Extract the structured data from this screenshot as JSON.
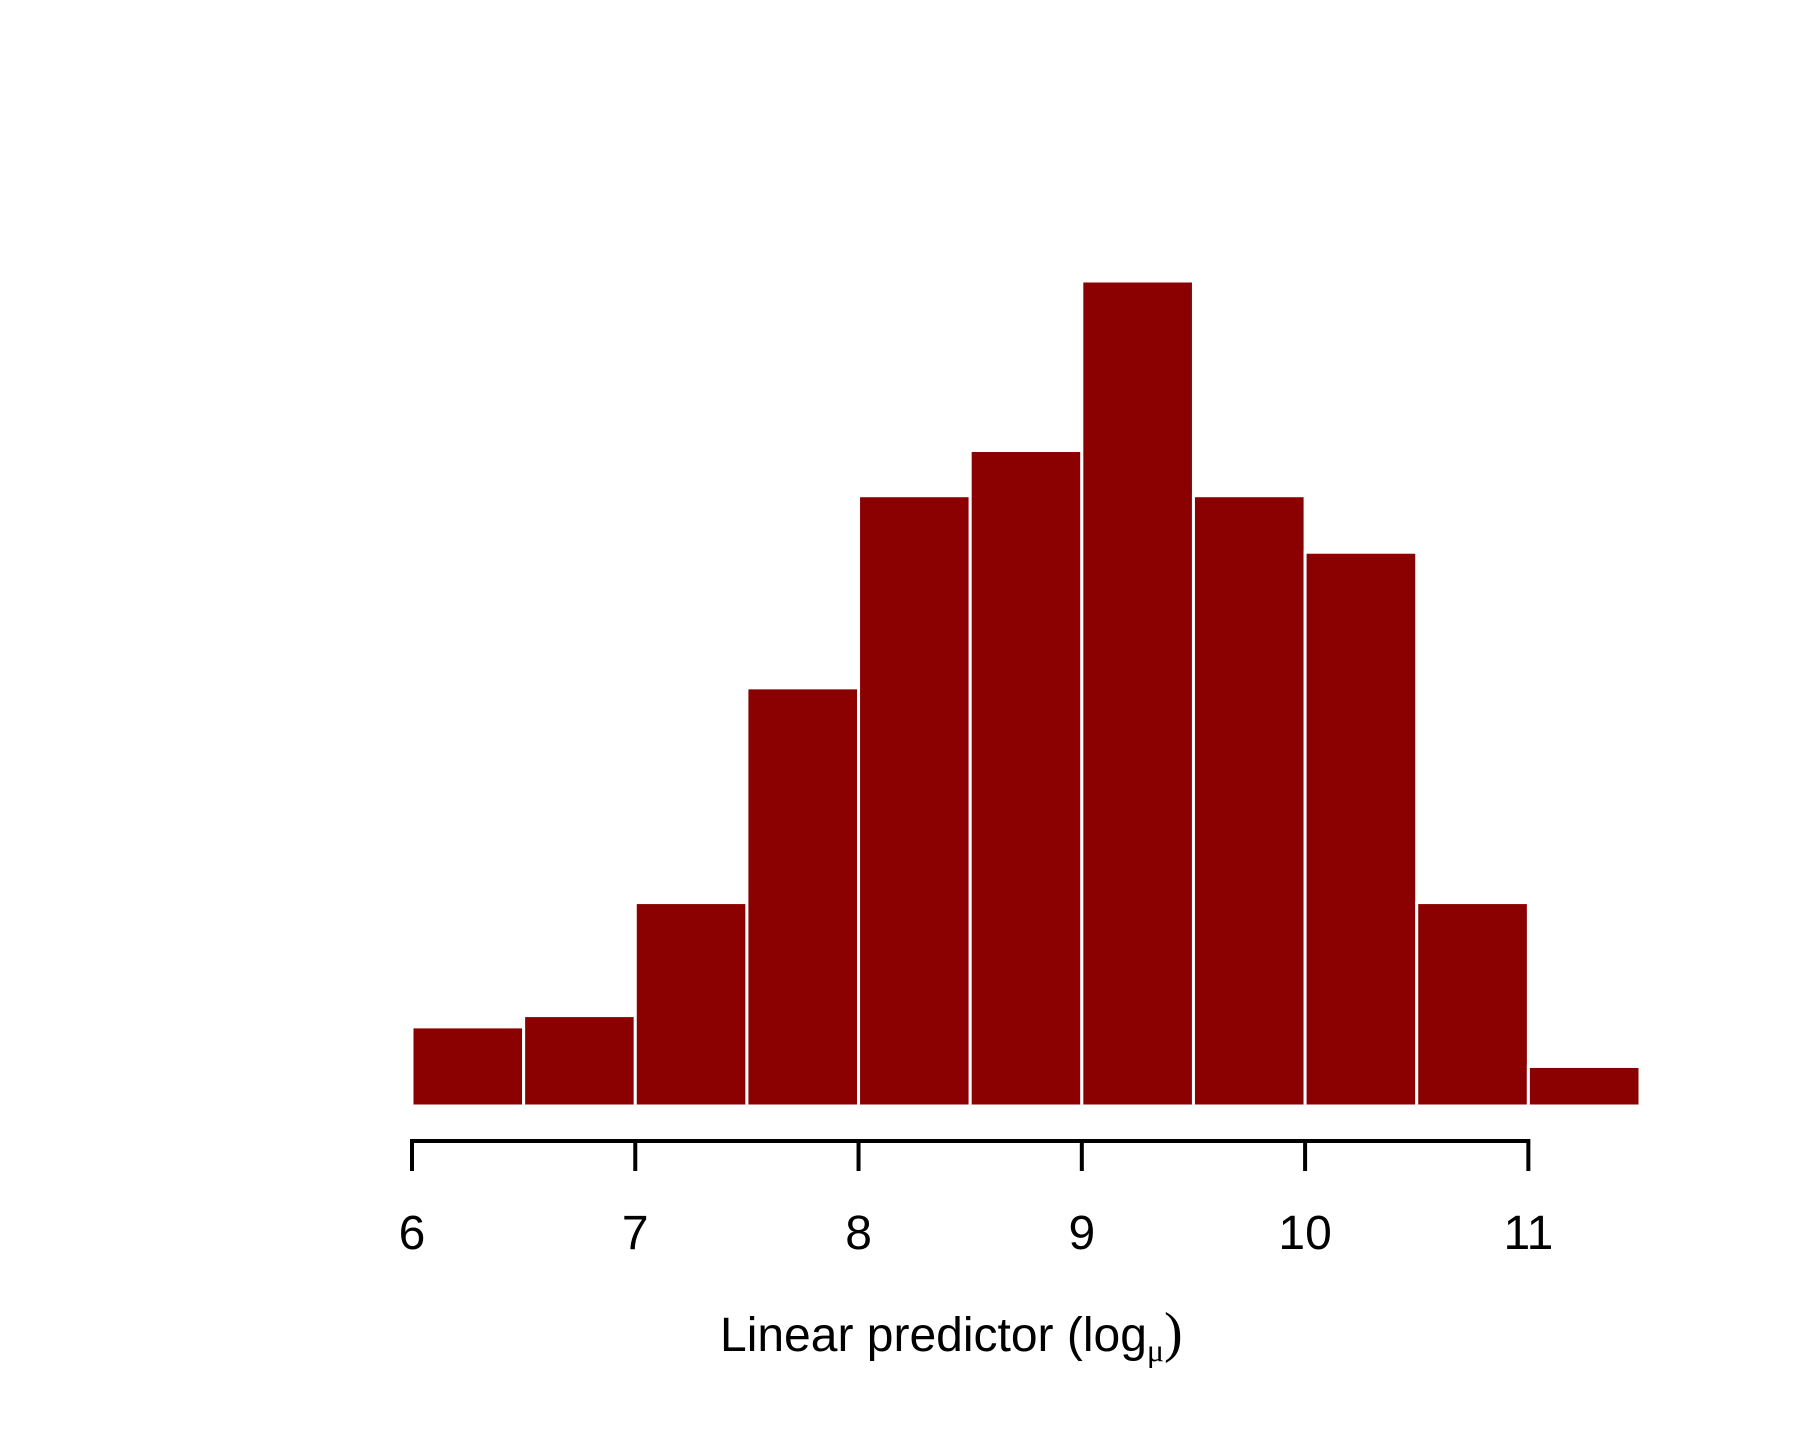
{
  "chart_data": {
    "type": "bar",
    "title": "",
    "xlabel": "Linear predictor (log",
    "xlabel_subscript": "μ",
    "xlabel_close": ")",
    "ylabel": "",
    "bin_edges": [
      6,
      6.5,
      7,
      7.5,
      8,
      8.5,
      9,
      9.5,
      10,
      10.5,
      11,
      11.5
    ],
    "values": [
      7,
      8,
      18,
      37,
      54,
      58,
      73,
      54,
      49,
      18,
      3.5
    ],
    "xlim": [
      6,
      11.5
    ],
    "ylim": [
      0,
      73
    ],
    "xticks": [
      6,
      7,
      8,
      9,
      10,
      11
    ],
    "xtick_labels": [
      "6",
      "7",
      "8",
      "9",
      "10",
      "11"
    ],
    "yaxis_shown": false,
    "grid": false,
    "colors": {
      "bar_fill": "#8b0000",
      "bar_edge": "#ffffff",
      "axis": "#000000"
    }
  }
}
